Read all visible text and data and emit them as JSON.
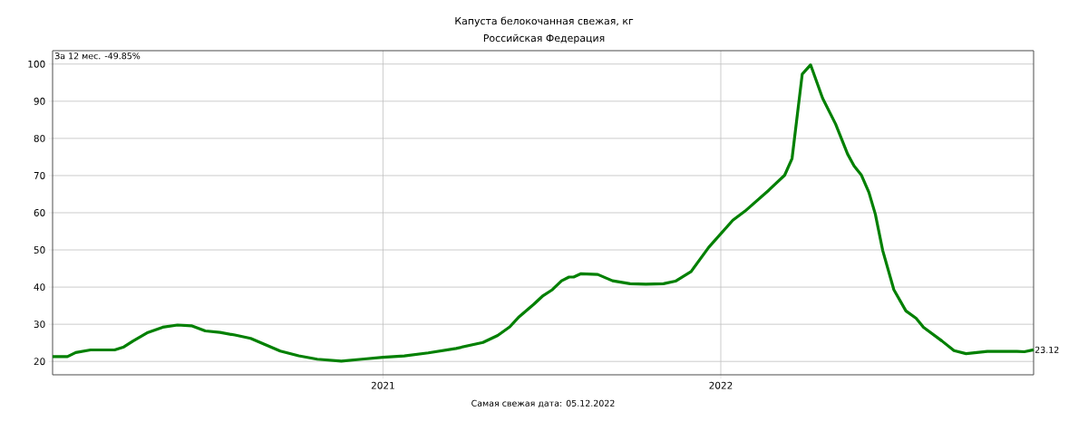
{
  "chart_data": {
    "type": "line",
    "title": "Капуста белокочанная свежая, кг",
    "subtitle": "Российская Федерация",
    "x": [
      "2020-01-10",
      "2020-01-26",
      "2020-02-04",
      "2020-02-20",
      "2020-03-17",
      "2020-03-27",
      "2020-04-06",
      "2020-04-22",
      "2020-05-08",
      "2020-05-24",
      "2020-06-08",
      "2020-06-23",
      "2020-07-09",
      "2020-07-25",
      "2020-08-11",
      "2020-08-27",
      "2020-09-12",
      "2020-10-02",
      "2020-10-22",
      "2020-11-17",
      "2020-12-09",
      "2021-01-01",
      "2021-01-24",
      "2021-02-19",
      "2021-03-21",
      "2021-04-19",
      "2021-05-05",
      "2021-05-18",
      "2021-05-28",
      "2021-06-13",
      "2021-06-23",
      "2021-07-03",
      "2021-07-13",
      "2021-07-21",
      "2021-07-26",
      "2021-08-03",
      "2021-08-21",
      "2021-09-06",
      "2021-09-25",
      "2021-10-12",
      "2021-10-31",
      "2021-11-13",
      "2021-11-30",
      "2021-12-19",
      "2022-01-14",
      "2022-01-27",
      "2022-02-22",
      "2022-03-11",
      "2022-03-19",
      "2022-03-30",
      "2022-04-08",
      "2022-04-21",
      "2022-05-05",
      "2022-05-18",
      "2022-05-25",
      "2022-06-02",
      "2022-06-10",
      "2022-06-17",
      "2022-06-25",
      "2022-07-07",
      "2022-07-20",
      "2022-07-31",
      "2022-08-08",
      "2022-08-28",
      "2022-09-10",
      "2022-09-23",
      "2022-10-16",
      "2022-11-17",
      "2022-11-25",
      "2022-12-05"
    ],
    "series": [
      {
        "color": "#008000",
        "values": [
          21.3,
          21.3,
          22.4,
          23.1,
          23.1,
          23.9,
          25.5,
          27.8,
          29.2,
          29.8,
          29.6,
          28.2,
          27.8,
          27.1,
          26.2,
          24.5,
          22.8,
          21.5,
          20.6,
          20.1,
          20.6,
          21.1,
          21.5,
          22.3,
          23.5,
          25.1,
          27.0,
          29.3,
          32.0,
          35.4,
          37.7,
          39.3,
          41.7,
          42.7,
          42.7,
          43.6,
          43.4,
          41.7,
          40.9,
          40.8,
          40.9,
          41.6,
          44.2,
          50.7,
          58.0,
          60.4,
          66.1,
          70.1,
          74.6,
          97.3,
          99.8,
          90.8,
          83.9,
          75.8,
          72.6,
          70.1,
          65.5,
          59.6,
          49.8,
          39.3,
          33.6,
          31.6,
          29.2,
          25.5,
          22.9,
          22.1,
          22.7,
          22.7,
          22.6,
          23.12
        ]
      }
    ],
    "xlim": [
      "2020-01-10",
      "2022-12-05"
    ],
    "xticks": [
      {
        "value": "2021-01-01",
        "label": "2021"
      },
      {
        "value": "2022-01-01",
        "label": "2022"
      }
    ],
    "ylim": [
      16.4,
      103.6
    ],
    "yticks": [
      20,
      30,
      40,
      50,
      60,
      70,
      80,
      90,
      100
    ],
    "grid": true,
    "annotations": [
      "За 12 мес. -49.85%",
      {
        "text": "23.12",
        "x": "2022-12-05",
        "y": 23.12
      },
      "Самая свежая дата: 05.12.2022"
    ]
  }
}
